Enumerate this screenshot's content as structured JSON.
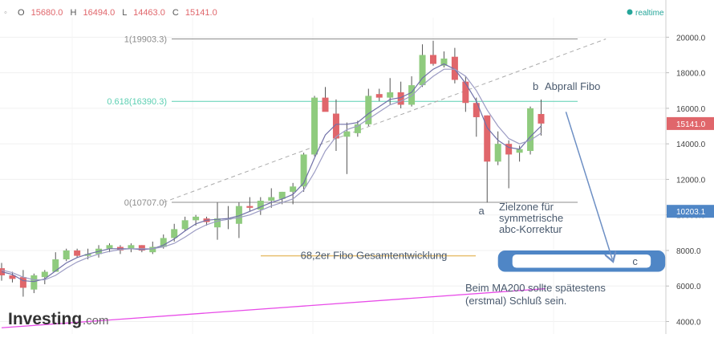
{
  "header": {
    "collapse_glyph": "◦",
    "o_label": "O",
    "o_value": "15680.0",
    "h_label": "H",
    "h_value": "16494.0",
    "l_label": "L",
    "l_value": "14463.0",
    "c_label": "C",
    "c_value": "15141.0",
    "status_label": "realtime",
    "status_color": "#26a69a"
  },
  "watermark": {
    "brand": "Investing",
    "suffix": ".com"
  },
  "colors": {
    "up": "#8fcb7e",
    "down": "#e0666b",
    "ma_fast": "#7070a8",
    "ma_slow": "#9c9cc4",
    "ma200": "#e84ce8",
    "fib_top": "#8c8c8c",
    "fib_618": "#5ccfb2",
    "fib_682": "#e8c070",
    "arrow": "#6d8fc4",
    "zone": "#4f86c6",
    "annotation": "#4a5a6e",
    "last_price_bg": "#e0666b",
    "target_bg": "#4f86c6"
  },
  "chart_data": {
    "type": "candlestick",
    "title": "",
    "xlabel": "",
    "ylabel": "",
    "ylim": [
      3300,
      21100
    ],
    "y_scale": "linear",
    "grid": true,
    "y_ticks": [
      "4000.0",
      "6000.0",
      "8000.0",
      "10000.0",
      "12000.0",
      "14000.0",
      "16000.0",
      "18000.0",
      "20000.0"
    ],
    "last_price": "15141.0",
    "target_price": "10203.1",
    "candles": [
      {
        "o": 7000,
        "h": 7300,
        "l": 6300,
        "c": 6600
      },
      {
        "o": 6600,
        "h": 6800,
        "l": 6200,
        "c": 6400
      },
      {
        "o": 6500,
        "h": 6900,
        "l": 5400,
        "c": 5900
      },
      {
        "o": 5800,
        "h": 6700,
        "l": 5600,
        "c": 6600
      },
      {
        "o": 6500,
        "h": 6900,
        "l": 6100,
        "c": 6800
      },
      {
        "o": 6800,
        "h": 7900,
        "l": 6800,
        "c": 7500
      },
      {
        "o": 7500,
        "h": 8100,
        "l": 7400,
        "c": 8000
      },
      {
        "o": 8000,
        "h": 8100,
        "l": 7600,
        "c": 7700
      },
      {
        "o": 7700,
        "h": 8100,
        "l": 7500,
        "c": 7800
      },
      {
        "o": 7800,
        "h": 8300,
        "l": 7600,
        "c": 8100
      },
      {
        "o": 8100,
        "h": 8400,
        "l": 7900,
        "c": 8300
      },
      {
        "o": 8200,
        "h": 8300,
        "l": 7800,
        "c": 8000
      },
      {
        "o": 8100,
        "h": 8400,
        "l": 7900,
        "c": 8300
      },
      {
        "o": 8300,
        "h": 8300,
        "l": 7900,
        "c": 8000
      },
      {
        "o": 7900,
        "h": 8500,
        "l": 7800,
        "c": 8200
      },
      {
        "o": 8200,
        "h": 8900,
        "l": 8100,
        "c": 8700
      },
      {
        "o": 8700,
        "h": 9500,
        "l": 8500,
        "c": 9200
      },
      {
        "o": 9200,
        "h": 9900,
        "l": 9100,
        "c": 9700
      },
      {
        "o": 9700,
        "h": 10000,
        "l": 9400,
        "c": 9900
      },
      {
        "o": 9800,
        "h": 9900,
        "l": 9400,
        "c": 9600
      },
      {
        "o": 9300,
        "h": 10700,
        "l": 8600,
        "c": 9800
      },
      {
        "o": 9800,
        "h": 10500,
        "l": 9200,
        "c": 9800
      },
      {
        "o": 9500,
        "h": 10700,
        "l": 8700,
        "c": 10500
      },
      {
        "o": 10500,
        "h": 11000,
        "l": 10200,
        "c": 10400
      },
      {
        "o": 10300,
        "h": 11000,
        "l": 10000,
        "c": 10800
      },
      {
        "o": 10800,
        "h": 11500,
        "l": 10400,
        "c": 11000
      },
      {
        "o": 10900,
        "h": 11300,
        "l": 10600,
        "c": 11300
      },
      {
        "o": 11300,
        "h": 11800,
        "l": 10600,
        "c": 11600
      },
      {
        "o": 11600,
        "h": 13500,
        "l": 11300,
        "c": 13400
      },
      {
        "o": 13400,
        "h": 16700,
        "l": 13300,
        "c": 16600
      },
      {
        "o": 16600,
        "h": 17200,
        "l": 15900,
        "c": 15800
      },
      {
        "o": 15700,
        "h": 16500,
        "l": 13600,
        "c": 14300
      },
      {
        "o": 14400,
        "h": 15200,
        "l": 12300,
        "c": 14700
      },
      {
        "o": 14600,
        "h": 15300,
        "l": 14400,
        "c": 15100
      },
      {
        "o": 15100,
        "h": 17100,
        "l": 15000,
        "c": 16700
      },
      {
        "o": 16800,
        "h": 17100,
        "l": 16400,
        "c": 16600
      },
      {
        "o": 16600,
        "h": 17700,
        "l": 16200,
        "c": 16900
      },
      {
        "o": 16900,
        "h": 17500,
        "l": 16000,
        "c": 16200
      },
      {
        "o": 16200,
        "h": 17800,
        "l": 16100,
        "c": 17300
      },
      {
        "o": 17300,
        "h": 19600,
        "l": 17200,
        "c": 19000
      },
      {
        "o": 19000,
        "h": 19800,
        "l": 18400,
        "c": 18500
      },
      {
        "o": 18400,
        "h": 19200,
        "l": 18300,
        "c": 18800
      },
      {
        "o": 18900,
        "h": 19400,
        "l": 17400,
        "c": 17600
      },
      {
        "o": 17500,
        "h": 17800,
        "l": 15800,
        "c": 16300
      },
      {
        "o": 16300,
        "h": 16600,
        "l": 14400,
        "c": 15500
      },
      {
        "o": 15600,
        "h": 15600,
        "l": 10700,
        "c": 13000
      },
      {
        "o": 13000,
        "h": 14700,
        "l": 12800,
        "c": 14000
      },
      {
        "o": 14000,
        "h": 14200,
        "l": 11500,
        "c": 13400
      },
      {
        "o": 13500,
        "h": 13900,
        "l": 13000,
        "c": 13700
      },
      {
        "o": 13600,
        "h": 16100,
        "l": 13400,
        "c": 16000
      },
      {
        "o": 15680,
        "h": 16494,
        "l": 14463,
        "c": 15141
      }
    ],
    "moving_averages": [
      {
        "type": "fast",
        "values": [
          6800,
          6650,
          6300,
          6250,
          6400,
          6850,
          7300,
          7600,
          7800,
          7950,
          8100,
          8100,
          8100,
          8050,
          8100,
          8300,
          8650,
          9100,
          9500,
          9700,
          9750,
          9800,
          9950,
          10200,
          10450,
          10700,
          10900,
          11150,
          11800,
          13200,
          14500,
          15100,
          15100,
          15200,
          15700,
          16100,
          16500,
          16600,
          16900,
          17700,
          18200,
          18500,
          18200,
          17400,
          16400,
          14900,
          14200,
          13800,
          13700,
          14400,
          15000
        ]
      },
      {
        "type": "slow",
        "values": [
          6900,
          6750,
          6500,
          6350,
          6350,
          6600,
          7000,
          7350,
          7600,
          7800,
          7950,
          8050,
          8100,
          8100,
          8100,
          8200,
          8400,
          8750,
          9150,
          9450,
          9650,
          9750,
          9850,
          10000,
          10250,
          10500,
          10700,
          10900,
          11400,
          12400,
          13600,
          14400,
          14800,
          15000,
          15400,
          15800,
          16200,
          16400,
          16700,
          17300,
          17800,
          18200,
          18200,
          17800,
          17000,
          15900,
          15000,
          14300,
          14000,
          14200,
          14600
        ]
      }
    ],
    "ma200": {
      "label": "MA200",
      "x": [
        0,
        50.4
      ],
      "y": [
        3650,
        5850
      ]
    },
    "fibonacci": [
      {
        "label": "1(19903.3)",
        "value": 19903.3
      },
      {
        "label": "0.618(16390.3)",
        "value": 16390.3
      },
      {
        "label": "0(10707.0)",
        "value": 10707.0
      }
    ],
    "trend_line": {
      "from": {
        "x": 15,
        "y": 10707
      },
      "to": {
        "x": 56,
        "y": 19903
      }
    },
    "fib_extension": {
      "label": "68,2er Fibo Gesamtentwicklung",
      "value": 7700
    },
    "wave_labels": {
      "a": "a",
      "b": "b",
      "c": "c"
    },
    "annotations": {
      "b_note": "Abprall Fibo",
      "zone_line1": "Zielzone für",
      "zone_line2": "symmetrische",
      "zone_line3": "abc-Korrektur",
      "ma200_line1": "Beim MA200 sollte spätestens",
      "ma200_line2": "(erstmal) Schluß sein."
    },
    "arrow": {
      "from": {
        "x": 52.3,
        "y": 15800
      },
      "to": {
        "x": 56.6,
        "y": 7500
      }
    },
    "target_zone": {
      "x0": 46,
      "x1": 61.5,
      "y0": 6800,
      "y1": 8000,
      "label": "c"
    }
  }
}
